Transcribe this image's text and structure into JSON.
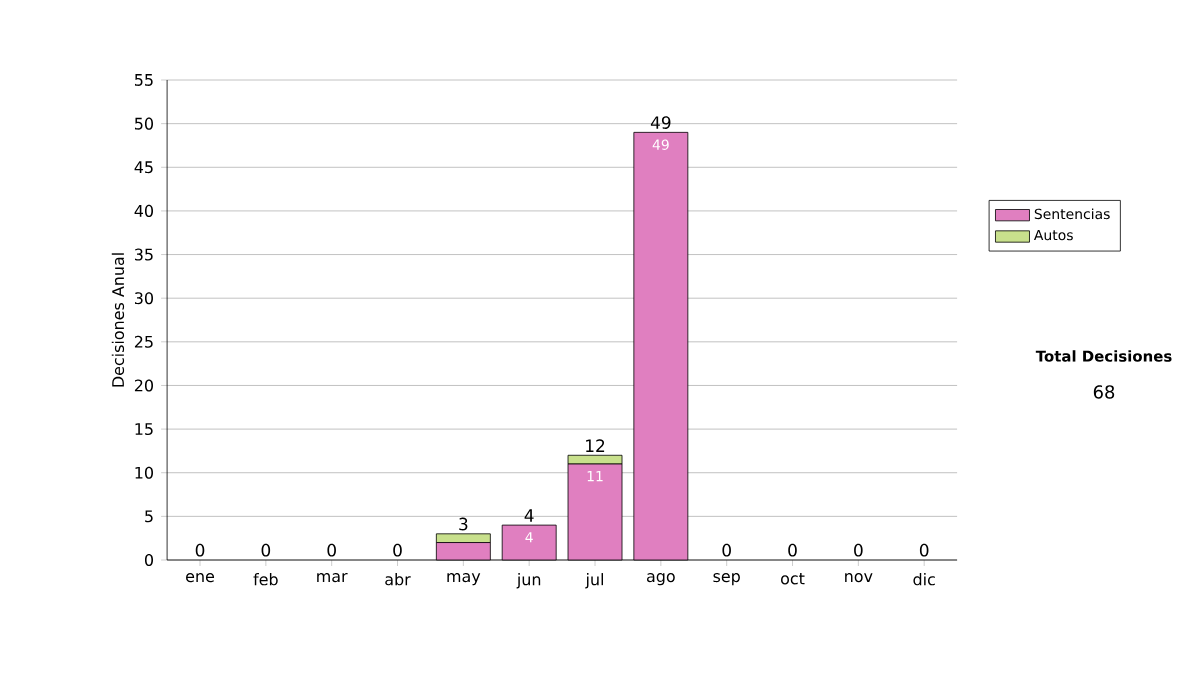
{
  "chart_data": {
    "type": "bar",
    "stacked": true,
    "ylabel": "Decisiones Anual",
    "categories": [
      "ene",
      "feb",
      "mar",
      "abr",
      "may",
      "jun",
      "jul",
      "ago",
      "sep",
      "oct",
      "nov",
      "dic"
    ],
    "series": [
      {
        "name": "Sentencias",
        "color": "#e07fc0",
        "values": [
          0,
          0,
          0,
          0,
          2,
          4,
          11,
          49,
          0,
          0,
          0,
          0
        ],
        "value_labels": [
          null,
          null,
          null,
          null,
          null,
          "4",
          "11",
          "49",
          null,
          null,
          null,
          null
        ]
      },
      {
        "name": "Autos",
        "color": "#c8e08c",
        "values": [
          0,
          0,
          0,
          0,
          1,
          0,
          1,
          0,
          0,
          0,
          0,
          0
        ]
      }
    ],
    "totals": [
      "0",
      "0",
      "0",
      "0",
      "3",
      "4",
      "12",
      "49",
      "0",
      "0",
      "0",
      "0"
    ],
    "ylim": [
      0,
      55
    ],
    "yticks": [
      0,
      5,
      10,
      15,
      20,
      25,
      30,
      35,
      40,
      45,
      50,
      55
    ],
    "grid": "y",
    "legend": "right",
    "annotations": [
      "Total Decisiones",
      "68"
    ]
  }
}
